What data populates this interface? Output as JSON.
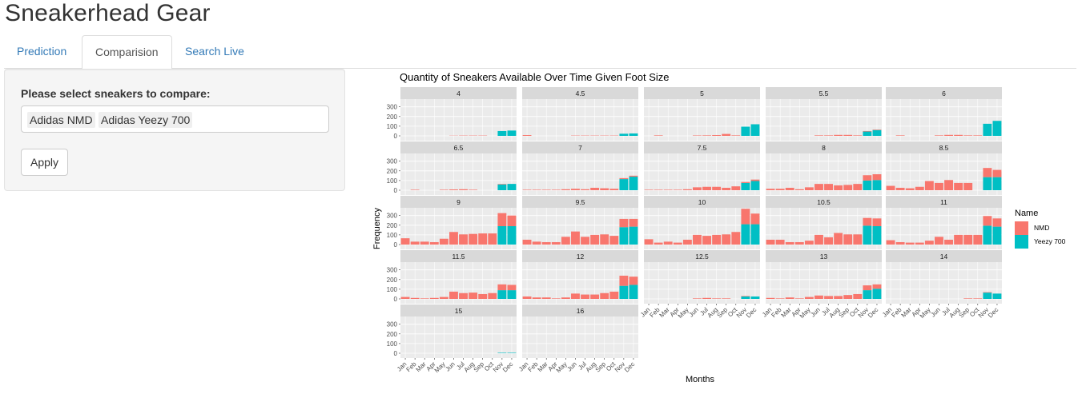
{
  "app": {
    "title": "Sneakerhead Gear"
  },
  "tabs": [
    {
      "label": "Prediction",
      "active": false
    },
    {
      "label": "Comparision",
      "active": true
    },
    {
      "label": "Search Live",
      "active": false
    }
  ],
  "sidebar": {
    "label": "Please select sneakers to compare:",
    "selected": [
      "Adidas NMD",
      "Adidas Yeezy 700"
    ],
    "apply_label": "Apply"
  },
  "chart_data": {
    "type": "bar",
    "stacked": true,
    "faceted_by": "Foot Size",
    "title": "Quantity of Sneakers Available Over Time Given Foot Size",
    "xlabel": "Months",
    "ylabel": "Frequency",
    "ylim": [
      0,
      380
    ],
    "yticks": [
      0,
      100,
      200,
      300
    ],
    "categories": [
      "Jan",
      "Feb",
      "Mar",
      "Apr",
      "May",
      "Jun",
      "Jul",
      "Aug",
      "Sep",
      "Oct",
      "Nov",
      "Dec"
    ],
    "legend": {
      "title": "Name",
      "position": "right",
      "entries": [
        {
          "name": "NMD",
          "color": "#F8766D"
        },
        {
          "name": "Yeezy 700",
          "color": "#00BFC4"
        }
      ]
    },
    "colors": {
      "NMD": "#F8766D",
      "Yeezy 700": "#00BFC4",
      "panel": "#EBEBEB",
      "strip": "#D9D9D9"
    },
    "facets": [
      {
        "label": "4",
        "nmd": [
          0,
          0,
          0,
          0,
          0,
          2,
          3,
          3,
          3,
          0,
          0,
          0
        ],
        "yeezy": [
          0,
          0,
          0,
          0,
          0,
          0,
          0,
          0,
          0,
          0,
          50,
          55
        ]
      },
      {
        "label": "4.5",
        "nmd": [
          8,
          0,
          0,
          0,
          0,
          3,
          3,
          3,
          3,
          3,
          0,
          0
        ],
        "yeezy": [
          0,
          0,
          0,
          0,
          0,
          0,
          0,
          0,
          0,
          0,
          22,
          25
        ]
      },
      {
        "label": "5",
        "nmd": [
          0,
          5,
          0,
          0,
          0,
          4,
          5,
          8,
          20,
          5,
          0,
          0
        ],
        "yeezy": [
          0,
          0,
          0,
          0,
          0,
          0,
          0,
          0,
          0,
          0,
          95,
          120
        ]
      },
      {
        "label": "5.5",
        "nmd": [
          0,
          0,
          0,
          0,
          0,
          5,
          5,
          10,
          10,
          5,
          5,
          5
        ],
        "yeezy": [
          0,
          0,
          0,
          0,
          0,
          0,
          0,
          0,
          0,
          0,
          45,
          60
        ]
      },
      {
        "label": "6",
        "nmd": [
          0,
          5,
          0,
          0,
          0,
          5,
          10,
          10,
          5,
          5,
          0,
          0
        ],
        "yeezy": [
          0,
          0,
          0,
          0,
          0,
          0,
          0,
          0,
          0,
          0,
          125,
          155
        ]
      },
      {
        "label": "6.5",
        "nmd": [
          0,
          5,
          0,
          0,
          5,
          8,
          10,
          5,
          0,
          0,
          5,
          0
        ],
        "yeezy": [
          0,
          0,
          0,
          0,
          0,
          0,
          0,
          0,
          0,
          0,
          60,
          65
        ]
      },
      {
        "label": "7",
        "nmd": [
          5,
          5,
          5,
          5,
          10,
          15,
          10,
          25,
          20,
          15,
          10,
          10
        ],
        "yeezy": [
          0,
          0,
          0,
          0,
          0,
          0,
          0,
          0,
          0,
          0,
          115,
          140
        ]
      },
      {
        "label": "7.5",
        "nmd": [
          5,
          5,
          5,
          5,
          10,
          30,
          35,
          35,
          25,
          40,
          10,
          15
        ],
        "yeezy": [
          0,
          0,
          0,
          0,
          0,
          0,
          0,
          0,
          0,
          0,
          75,
          95
        ]
      },
      {
        "label": "8",
        "nmd": [
          15,
          15,
          25,
          10,
          30,
          65,
          65,
          50,
          55,
          65,
          55,
          60
        ],
        "yeezy": [
          0,
          0,
          0,
          0,
          0,
          0,
          0,
          0,
          0,
          0,
          100,
          105
        ]
      },
      {
        "label": "8.5",
        "nmd": [
          45,
          25,
          20,
          35,
          95,
          75,
          105,
          75,
          75,
          0,
          95,
          75
        ],
        "yeezy": [
          0,
          0,
          0,
          0,
          0,
          0,
          0,
          0,
          0,
          0,
          135,
          135
        ]
      },
      {
        "label": "9",
        "nmd": [
          65,
          30,
          30,
          25,
          60,
          130,
          105,
          110,
          115,
          115,
          135,
          110
        ],
        "yeezy": [
          0,
          0,
          0,
          0,
          0,
          0,
          0,
          0,
          0,
          0,
          190,
          190
        ]
      },
      {
        "label": "9.5",
        "nmd": [
          50,
          30,
          25,
          25,
          80,
          135,
          80,
          100,
          105,
          90,
          85,
          80
        ],
        "yeezy": [
          0,
          0,
          0,
          0,
          0,
          0,
          0,
          0,
          0,
          0,
          180,
          185
        ]
      },
      {
        "label": "10",
        "nmd": [
          55,
          20,
          30,
          20,
          50,
          100,
          90,
          100,
          105,
          130,
          160,
          110
        ],
        "yeezy": [
          0,
          0,
          0,
          0,
          0,
          0,
          0,
          0,
          0,
          0,
          210,
          210
        ]
      },
      {
        "label": "10.5",
        "nmd": [
          50,
          50,
          25,
          25,
          40,
          100,
          75,
          120,
          105,
          105,
          80,
          80
        ],
        "yeezy": [
          0,
          0,
          0,
          0,
          0,
          0,
          0,
          0,
          0,
          0,
          195,
          190
        ]
      },
      {
        "label": "11",
        "nmd": [
          45,
          25,
          20,
          20,
          40,
          80,
          50,
          100,
          100,
          100,
          100,
          85
        ],
        "yeezy": [
          0,
          0,
          0,
          0,
          0,
          0,
          0,
          0,
          0,
          0,
          195,
          185
        ]
      },
      {
        "label": "11.5",
        "nmd": [
          20,
          10,
          5,
          10,
          20,
          75,
          60,
          65,
          50,
          60,
          60,
          55
        ],
        "yeezy": [
          0,
          0,
          0,
          0,
          0,
          0,
          0,
          0,
          0,
          0,
          90,
          90
        ]
      },
      {
        "label": "12",
        "nmd": [
          25,
          15,
          15,
          5,
          15,
          55,
          45,
          45,
          60,
          75,
          105,
          85
        ],
        "yeezy": [
          0,
          0,
          0,
          0,
          0,
          0,
          0,
          0,
          0,
          0,
          135,
          145
        ]
      },
      {
        "label": "12.5",
        "nmd": [
          0,
          0,
          0,
          0,
          0,
          5,
          10,
          5,
          5,
          0,
          5,
          0
        ],
        "yeezy": [
          0,
          0,
          0,
          0,
          0,
          0,
          0,
          0,
          0,
          0,
          25,
          25
        ]
      },
      {
        "label": "13",
        "nmd": [
          10,
          5,
          15,
          5,
          20,
          35,
          30,
          30,
          40,
          50,
          50,
          45
        ],
        "yeezy": [
          0,
          0,
          0,
          0,
          0,
          0,
          0,
          0,
          0,
          0,
          90,
          105
        ]
      },
      {
        "label": "14",
        "nmd": [
          0,
          0,
          0,
          0,
          0,
          0,
          0,
          0,
          5,
          5,
          5,
          0
        ],
        "yeezy": [
          0,
          0,
          0,
          0,
          0,
          0,
          0,
          0,
          0,
          0,
          65,
          55
        ]
      },
      {
        "label": "15",
        "nmd": [
          0,
          0,
          0,
          0,
          0,
          0,
          0,
          0,
          0,
          0,
          0,
          0
        ],
        "yeezy": [
          0,
          0,
          0,
          0,
          0,
          0,
          0,
          0,
          0,
          0,
          5,
          5
        ]
      },
      {
        "label": "16",
        "nmd": [
          0,
          0,
          0,
          0,
          0,
          0,
          0,
          0,
          0,
          0,
          0,
          0
        ],
        "yeezy": [
          0,
          0,
          0,
          0,
          0,
          0,
          0,
          0,
          0,
          0,
          0,
          0
        ]
      }
    ]
  }
}
